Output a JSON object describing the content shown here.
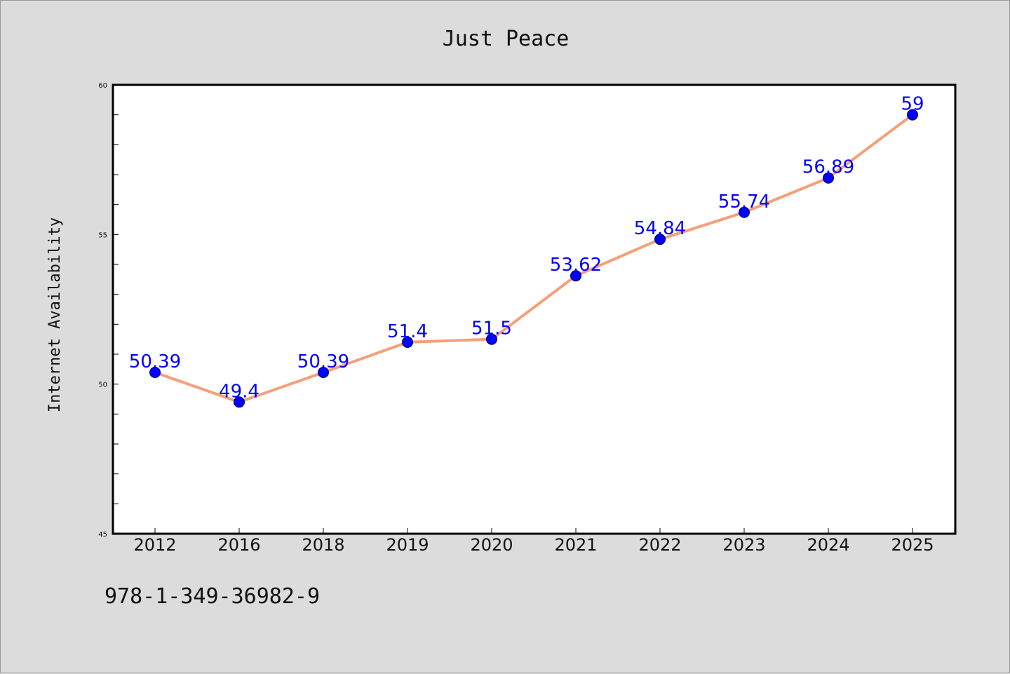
{
  "chart_data": {
    "type": "line",
    "title": "Just Peace",
    "xlabel": "",
    "ylabel": "Internet Availability",
    "categories": [
      "2012",
      "2016",
      "2018",
      "2019",
      "2020",
      "2021",
      "2022",
      "2023",
      "2024",
      "2025"
    ],
    "series": [
      {
        "values": [
          50.39,
          49.4,
          50.39,
          51.4,
          51.5,
          53.62,
          54.84,
          55.74,
          56.89,
          59
        ],
        "line_color": "#f4a07a",
        "marker_color": "#0000ff"
      }
    ],
    "data_labels": [
      "50.39",
      "49.4",
      "50.39",
      "51.4",
      "51.5",
      "53.62",
      "54.84",
      "55.74",
      "56.89",
      "59"
    ],
    "ylim": [
      45,
      60
    ],
    "yticks": [
      45,
      50,
      55,
      60
    ],
    "yticks_minor": [
      46,
      47,
      48,
      49,
      51,
      52,
      53,
      54,
      56,
      57,
      58,
      59
    ],
    "grid": false,
    "legend": "none"
  },
  "footnote": "978-1-349-36982-9",
  "colors": {
    "background": "#dcdcdc",
    "plot_area": "#ffffff",
    "line": "#f4a07a",
    "marker": "#0000ff",
    "data_label": "#0000ff"
  }
}
